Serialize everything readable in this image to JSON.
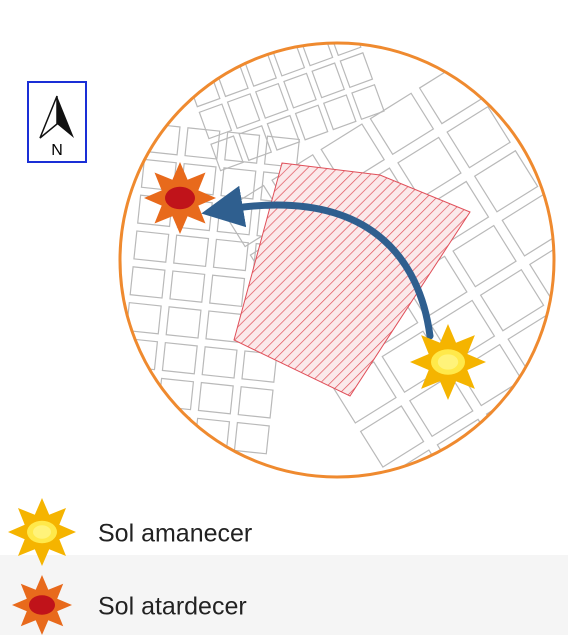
{
  "north": {
    "label": "N"
  },
  "legend": [
    {
      "label": "Sol amanecer"
    },
    {
      "label": "Sol atardecer"
    }
  ]
}
